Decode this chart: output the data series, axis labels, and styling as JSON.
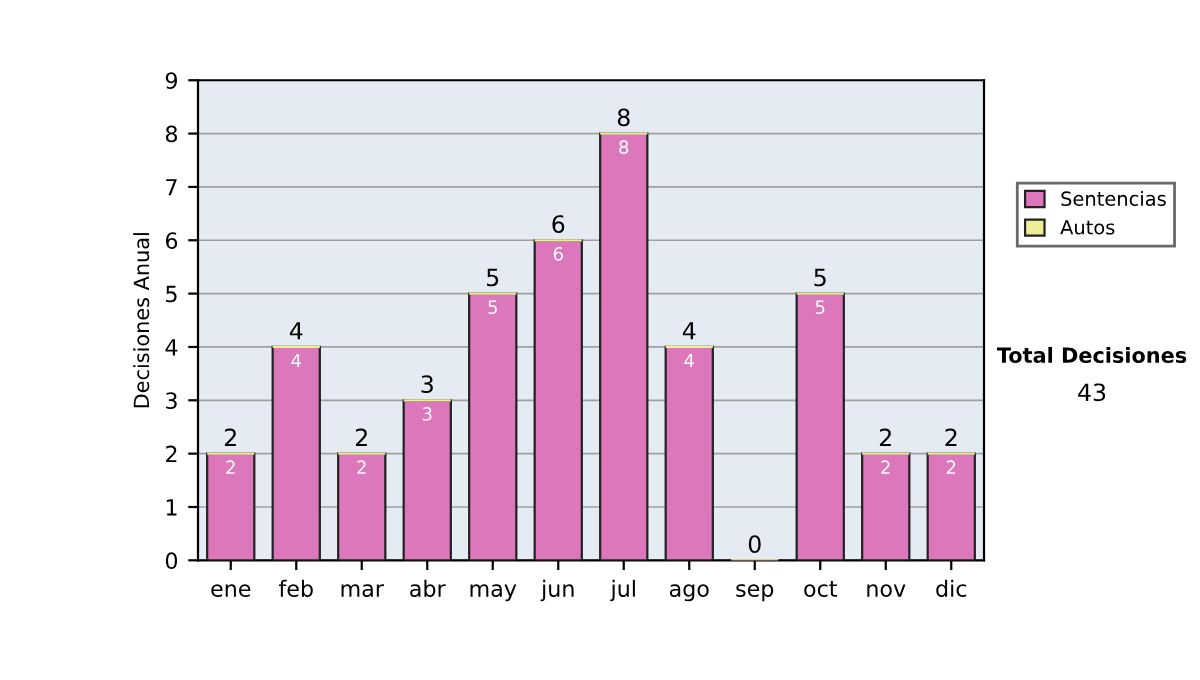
{
  "chart_data": {
    "type": "bar",
    "ylabel": "Decisiones Anual",
    "categories": [
      "ene",
      "feb",
      "mar",
      "abr",
      "may",
      "jun",
      "jul",
      "ago",
      "sep",
      "oct",
      "nov",
      "dic"
    ],
    "stacked": true,
    "series": [
      {
        "name": "Sentencias",
        "color": "#dd77bb",
        "values": [
          2,
          4,
          2,
          3,
          5,
          6,
          8,
          4,
          0,
          5,
          2,
          2
        ],
        "value_labels": [
          "2",
          "4",
          "2",
          "3",
          "5",
          "6",
          "8",
          "4",
          null,
          "5",
          "2",
          "2"
        ]
      },
      {
        "name": "Autos",
        "color": "#eeee99",
        "values": [
          0,
          0,
          0,
          0,
          0,
          0,
          0,
          0,
          0,
          0,
          0,
          0
        ]
      }
    ],
    "totals": [
      "2",
      "4",
      "2",
      "3",
      "5",
      "6",
      "8",
      "4",
      "0",
      "5",
      "2",
      "2"
    ],
    "ylim": [
      0,
      9
    ],
    "yticks": [
      0,
      1,
      2,
      3,
      4,
      5,
      6,
      7,
      8,
      9
    ],
    "grid": "y",
    "legend": "right",
    "annotations": [
      "Total Decisiones",
      "43"
    ]
  }
}
